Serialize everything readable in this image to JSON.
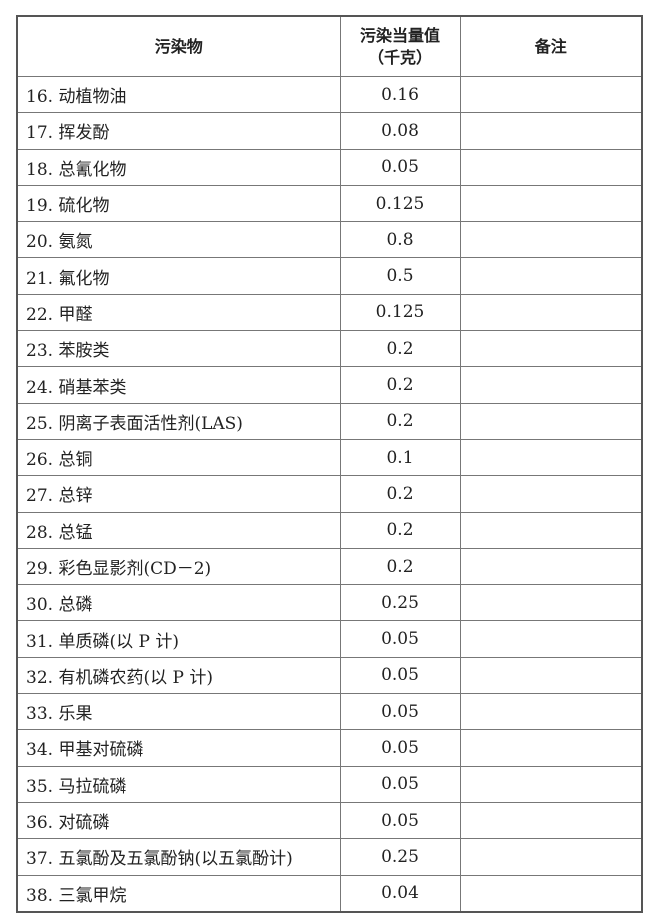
{
  "table": {
    "headers": {
      "pollutant": "污染物",
      "equivalent_line1": "污染当量值",
      "equivalent_line2": "（千克）",
      "remarks": "备注"
    },
    "rows": [
      {
        "name": "16. 动植物油",
        "value": "0.16",
        "remark": ""
      },
      {
        "name": "17. 挥发酚",
        "value": "0.08",
        "remark": ""
      },
      {
        "name": "18. 总氰化物",
        "value": "0.05",
        "remark": ""
      },
      {
        "name": "19. 硫化物",
        "value": "0.125",
        "remark": ""
      },
      {
        "name": "20. 氨氮",
        "value": "0.8",
        "remark": ""
      },
      {
        "name": "21. 氟化物",
        "value": "0.5",
        "remark": ""
      },
      {
        "name": "22. 甲醛",
        "value": "0.125",
        "remark": ""
      },
      {
        "name": "23. 苯胺类",
        "value": "0.2",
        "remark": ""
      },
      {
        "name": "24. 硝基苯类",
        "value": "0.2",
        "remark": ""
      },
      {
        "name": "25. 阴离子表面活性剂(LAS)",
        "value": "0.2",
        "remark": ""
      },
      {
        "name": "26. 总铜",
        "value": "0.1",
        "remark": ""
      },
      {
        "name": "27. 总锌",
        "value": "0.2",
        "remark": ""
      },
      {
        "name": "28. 总锰",
        "value": "0.2",
        "remark": ""
      },
      {
        "name": "29. 彩色显影剂(CD－2)",
        "value": "0.2",
        "remark": ""
      },
      {
        "name": "30. 总磷",
        "value": "0.25",
        "remark": ""
      },
      {
        "name": "31. 单质磷(以 P 计)",
        "value": "0.05",
        "remark": ""
      },
      {
        "name": "32. 有机磷农药(以 P 计)",
        "value": "0.05",
        "remark": ""
      },
      {
        "name": "33. 乐果",
        "value": "0.05",
        "remark": ""
      },
      {
        "name": "34. 甲基对硫磷",
        "value": "0.05",
        "remark": ""
      },
      {
        "name": "35. 马拉硫磷",
        "value": "0.05",
        "remark": ""
      },
      {
        "name": "36. 对硫磷",
        "value": "0.05",
        "remark": ""
      },
      {
        "name": "37. 五氯酚及五氯酚钠(以五氯酚计)",
        "value": "0.25",
        "remark": ""
      },
      {
        "name": "38. 三氯甲烷",
        "value": "0.04",
        "remark": ""
      }
    ]
  }
}
